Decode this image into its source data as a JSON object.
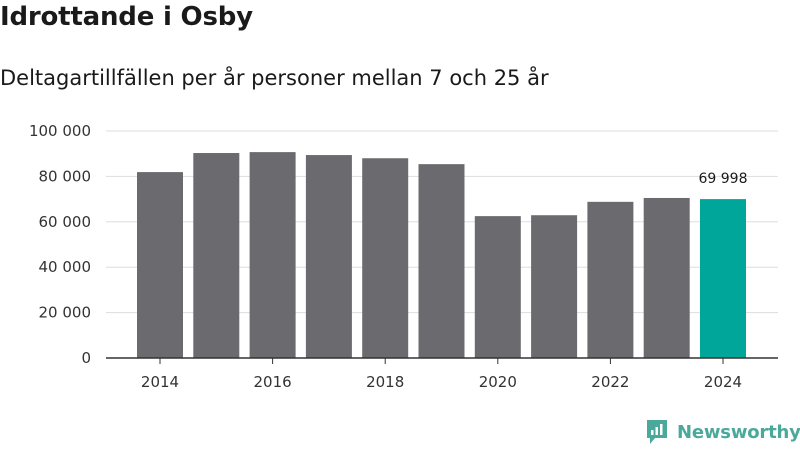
{
  "title": "Idrottande i Osby",
  "subtitle": "Deltagartillfällen per år personer mellan 7 och 25 år",
  "brand": "Newsworthy",
  "colors": {
    "bar": "#6b6a6f",
    "highlight": "#00a69a",
    "grid": "#dddddd",
    "axis": "#333333",
    "brand": "#4aa99a"
  },
  "chart_data": {
    "type": "bar",
    "title": "Idrottande i Osby",
    "subtitle": "Deltagartillfällen per år personer mellan 7 och 25 år",
    "xlabel": "",
    "ylabel": "",
    "categories": [
      2014,
      2015,
      2016,
      2017,
      2018,
      2019,
      2020,
      2021,
      2022,
      2023,
      2024
    ],
    "values": [
      81900,
      90300,
      90700,
      89400,
      88000,
      85400,
      62500,
      62900,
      68800,
      70500,
      69998
    ],
    "highlight_index": 10,
    "data_labels": [
      {
        "index": 10,
        "text": "69 998"
      }
    ],
    "ylim": [
      0,
      100000
    ],
    "yticks": [
      0,
      20000,
      40000,
      60000,
      80000,
      100000
    ],
    "ytick_labels": [
      "0",
      "20 000",
      "40 000",
      "60 000",
      "80 000",
      "100 000"
    ],
    "xtick_labels": [
      "2014",
      "2016",
      "2018",
      "2020",
      "2022",
      "2024"
    ],
    "grid": true
  }
}
